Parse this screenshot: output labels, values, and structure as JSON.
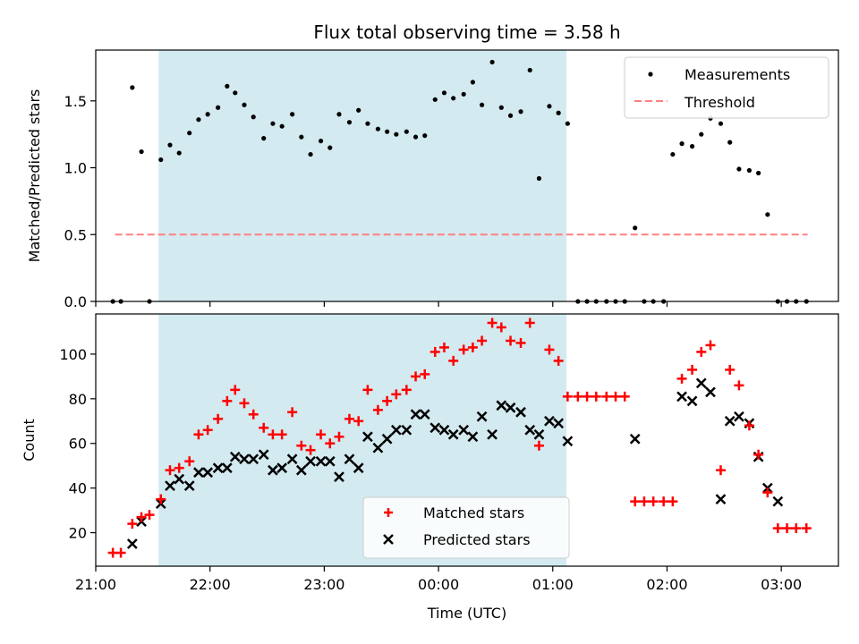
{
  "chart_data": [
    {
      "type": "scatter",
      "title": "Flux total observing time = 3.58 h",
      "xlabel": "",
      "ylabel": "Matched/Predicted stars",
      "xlim": [
        21.0,
        27.5
      ],
      "ylim": [
        0,
        1.88
      ],
      "yticks": [
        0,
        0.5,
        1.0,
        1.5
      ],
      "ytick_labels": [
        "0.0",
        "0.5",
        "1.0",
        "1.5"
      ],
      "xticks": [
        21,
        22,
        23,
        24,
        25,
        26,
        27
      ],
      "highlight_span": [
        21.55,
        25.12
      ],
      "highlight_color": "#d3eaf0",
      "legend_position": "top-right",
      "series": [
        {
          "name": "Measurements",
          "marker": "dot",
          "color": "#000000",
          "x": [
            21.15,
            21.22,
            21.47,
            21.32,
            21.4,
            21.57,
            21.65,
            21.73,
            21.82,
            21.9,
            21.98,
            22.07,
            22.15,
            22.22,
            22.3,
            22.38,
            22.47,
            22.55,
            22.63,
            22.72,
            22.8,
            22.88,
            22.97,
            23.05,
            23.13,
            23.22,
            23.3,
            23.38,
            23.47,
            23.55,
            23.63,
            23.72,
            23.8,
            23.88,
            23.97,
            24.05,
            24.13,
            24.22,
            24.3,
            24.38,
            24.47,
            24.55,
            24.63,
            24.72,
            24.8,
            24.88,
            24.97,
            25.05,
            25.13,
            25.22,
            25.3,
            25.38,
            25.47,
            25.55,
            25.63,
            25.72,
            25.8,
            25.88,
            25.97,
            26.05,
            26.13,
            26.22,
            26.3,
            26.38,
            26.47,
            26.55,
            26.63,
            26.72,
            26.8,
            26.88,
            26.97,
            27.05,
            27.13,
            27.22
          ],
          "y": [
            0,
            0,
            0,
            1.6,
            1.12,
            1.06,
            1.17,
            1.11,
            1.26,
            1.36,
            1.4,
            1.45,
            1.61,
            1.56,
            1.47,
            1.38,
            1.22,
            1.33,
            1.31,
            1.4,
            1.23,
            1.1,
            1.2,
            1.15,
            1.4,
            1.34,
            1.43,
            1.33,
            1.29,
            1.27,
            1.25,
            1.27,
            1.23,
            1.24,
            1.51,
            1.56,
            1.52,
            1.55,
            1.64,
            1.47,
            1.79,
            1.45,
            1.39,
            1.42,
            1.73,
            0.92,
            1.46,
            1.41,
            1.33,
            0,
            0,
            0,
            0,
            0,
            0,
            0.55,
            0,
            0,
            0,
            1.1,
            1.18,
            1.16,
            1.25,
            1.37,
            1.33,
            1.19,
            0.99,
            0.98,
            0.96,
            0.65,
            0,
            0,
            0,
            0
          ]
        },
        {
          "name": "Threshold",
          "style": "dashed",
          "color": "#ff8080",
          "x": [
            21.17,
            27.23
          ],
          "y": [
            0.5,
            0.5
          ]
        }
      ]
    },
    {
      "type": "scatter",
      "title": "",
      "xlabel": "Time (UTC)",
      "ylabel": "Count",
      "xlim": [
        21.0,
        27.5
      ],
      "ylim": [
        5,
        118
      ],
      "yticks": [
        20,
        40,
        60,
        80,
        100
      ],
      "ytick_labels": [
        "20",
        "40",
        "60",
        "80",
        "100"
      ],
      "xticks": [
        21,
        22,
        23,
        24,
        25,
        26,
        27
      ],
      "xtick_labels": [
        "21:00",
        "22:00",
        "23:00",
        "00:00",
        "01:00",
        "02:00",
        "03:00"
      ],
      "highlight_span": [
        21.55,
        25.12
      ],
      "highlight_color": "#d3eaf0",
      "legend_position": "bottom-center",
      "series": [
        {
          "name": "Matched stars",
          "marker": "plus",
          "color": "#ff0000",
          "x": [
            21.15,
            21.22,
            21.32,
            21.4,
            21.47,
            21.57,
            21.65,
            21.73,
            21.82,
            21.9,
            21.98,
            22.07,
            22.15,
            22.22,
            22.3,
            22.38,
            22.47,
            22.55,
            22.63,
            22.72,
            22.8,
            22.88,
            22.97,
            23.05,
            23.13,
            23.22,
            23.3,
            23.38,
            23.47,
            23.55,
            23.63,
            23.72,
            23.8,
            23.88,
            23.97,
            24.05,
            24.13,
            24.22,
            24.3,
            24.38,
            24.47,
            24.55,
            24.63,
            24.72,
            24.8,
            24.88,
            24.97,
            25.05,
            25.13,
            25.22,
            25.3,
            25.38,
            25.47,
            25.55,
            25.63,
            25.72,
            25.8,
            25.88,
            25.97,
            26.05,
            26.13,
            26.22,
            26.3,
            26.38,
            26.47,
            26.55,
            26.63,
            26.72,
            26.8,
            26.88,
            26.97,
            27.05,
            27.13,
            27.22
          ],
          "y": [
            11,
            11,
            24,
            27,
            28,
            35,
            48,
            49,
            52,
            64,
            66,
            71,
            79,
            84,
            78,
            73,
            67,
            64,
            64,
            74,
            59,
            57,
            64,
            60,
            63,
            71,
            70,
            84,
            75,
            79,
            82,
            84,
            90,
            91,
            101,
            103,
            97,
            102,
            103,
            106,
            114,
            112,
            106,
            105,
            114,
            59,
            102,
            97,
            81,
            81,
            81,
            81,
            81,
            81,
            81,
            34,
            34,
            34,
            34,
            34,
            89,
            93,
            101,
            104,
            48,
            93,
            86,
            68,
            55,
            38,
            22,
            22,
            22,
            22
          ]
        },
        {
          "name": "Predicted stars",
          "marker": "x",
          "color": "#000000",
          "x": [
            21.32,
            21.4,
            21.57,
            21.65,
            21.73,
            21.82,
            21.9,
            21.98,
            22.07,
            22.15,
            22.22,
            22.3,
            22.38,
            22.47,
            22.55,
            22.63,
            22.72,
            22.8,
            22.88,
            22.97,
            23.05,
            23.13,
            23.22,
            23.3,
            23.38,
            23.47,
            23.55,
            23.63,
            23.72,
            23.8,
            23.88,
            23.97,
            24.05,
            24.13,
            24.22,
            24.3,
            24.38,
            24.47,
            24.55,
            24.63,
            24.72,
            24.8,
            24.88,
            24.97,
            25.05,
            25.13,
            25.72,
            26.13,
            26.22,
            26.3,
            26.38,
            26.47,
            26.55,
            26.63,
            26.72,
            26.8,
            26.88,
            26.97
          ],
          "y": [
            15,
            25,
            33,
            41,
            44,
            41,
            47,
            47,
            49,
            49,
            54,
            53,
            53,
            55,
            48,
            49,
            53,
            48,
            52,
            52,
            52,
            45,
            53,
            49,
            63,
            58,
            62,
            66,
            66,
            73,
            73,
            67,
            66,
            64,
            66,
            63,
            72,
            64,
            77,
            76,
            74,
            66,
            64,
            70,
            69,
            61,
            62,
            81,
            79,
            87,
            83,
            35,
            70,
            72,
            69,
            54,
            40,
            34
          ]
        }
      ]
    }
  ]
}
